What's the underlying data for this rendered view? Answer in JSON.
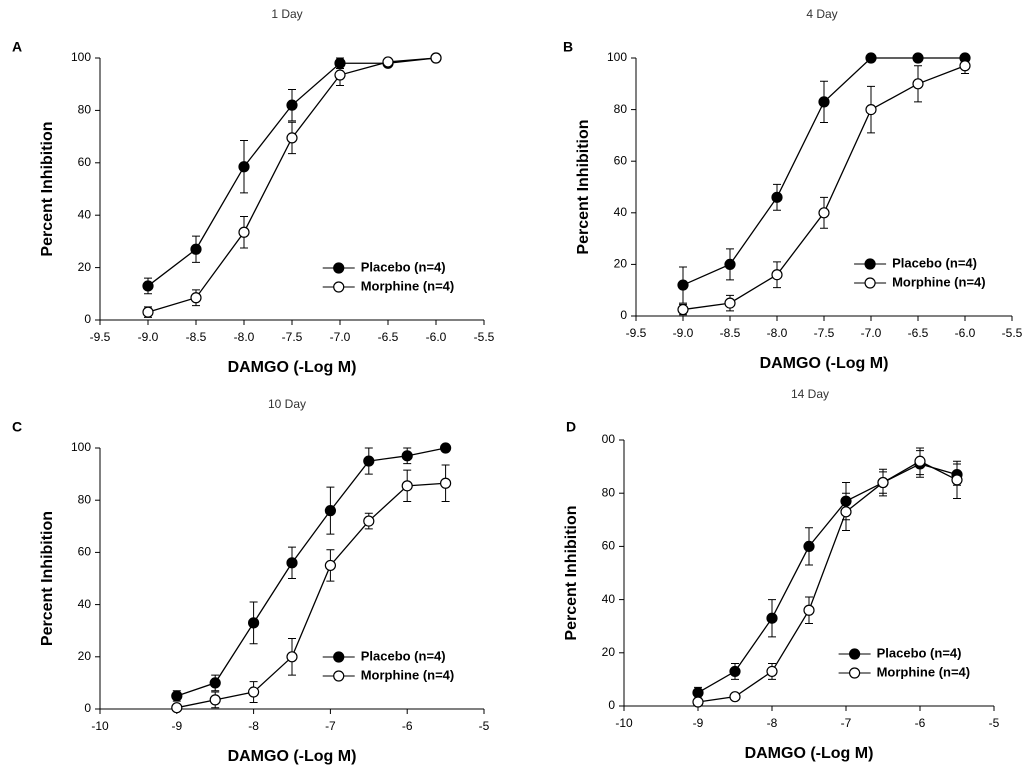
{
  "chart_data": [
    {
      "type": "line",
      "label": "A",
      "title": "1 Day",
      "xlabel": "DAMGO (-Log M)",
      "ylabel": "Percent Inhibition",
      "legend": "lower right",
      "x": [
        -9,
        -8.5,
        -8,
        -7.5,
        -7,
        -6.5,
        -6
      ],
      "xlim": [
        -9.5,
        -5.5
      ],
      "xticks": [
        -9.5,
        {
          "value": -9,
          "label": "-9.0"
        },
        -8.5,
        {
          "value": -8,
          "label": "-8.0"
        },
        -7.5,
        {
          "value": -7,
          "label": "-7.0"
        },
        -6.5,
        {
          "value": -6,
          "label": "-6.0"
        },
        -5.5
      ],
      "ylim": [
        0,
        100
      ],
      "yticks": [
        0,
        20,
        40,
        60,
        80,
        100
      ],
      "series": [
        {
          "name": "Placebo (n=4)",
          "color": "#000000",
          "values": [
            13,
            27,
            58.5,
            82,
            98,
            98,
            100
          ],
          "errors": [
            3,
            5,
            10,
            6,
            2,
            1,
            0
          ]
        },
        {
          "name": "Morphine (n=4)",
          "color": "#ffffff",
          "values": [
            3,
            8.5,
            33.5,
            69.5,
            93.5,
            98.5,
            100
          ],
          "errors": [
            2,
            3,
            6,
            6,
            4,
            1,
            0
          ]
        }
      ]
    },
    {
      "type": "line",
      "label": "B",
      "title": "4 Day",
      "xlabel": "DAMGO (-Log M)",
      "ylabel": "Percent Inhibition",
      "legend": "lower right",
      "x": [
        -9,
        -8.5,
        -8,
        -7.5,
        -7,
        -6.5,
        -6
      ],
      "xlim": [
        -9.5,
        -5.5
      ],
      "xticks": [
        -9.5,
        {
          "value": -9,
          "label": "-9.0"
        },
        -8.5,
        {
          "value": -8,
          "label": "-8.0"
        },
        -7.5,
        {
          "value": -7,
          "label": "-7.0"
        },
        -6.5,
        {
          "value": -6,
          "label": "-6.0"
        },
        -5.5
      ],
      "ylim": [
        0,
        100
      ],
      "yticks": [
        0,
        20,
        40,
        60,
        80,
        100
      ],
      "series": [
        {
          "name": "Placebo (n=4)",
          "color": "#000000",
          "values": [
            12,
            20,
            46,
            83,
            100,
            100,
            100
          ],
          "errors": [
            7,
            6,
            5,
            8,
            0,
            0,
            0
          ]
        },
        {
          "name": "Morphine (n=4)",
          "color": "#ffffff",
          "values": [
            2.5,
            5,
            16,
            40,
            80,
            90,
            97
          ],
          "errors": [
            2,
            3,
            5,
            6,
            9,
            7,
            3
          ]
        }
      ]
    },
    {
      "type": "line",
      "label": "C",
      "title": "10 Day",
      "xlabel": "DAMGO (-Log M)",
      "ylabel": "Percent Inhibition",
      "legend": "lower right",
      "x": [
        -9,
        -8.5,
        -8,
        -7.5,
        -7,
        -6.5,
        -6,
        -5.5
      ],
      "xlim": [
        -10,
        -5
      ],
      "xticks": [
        -10,
        -9,
        -8,
        -7,
        -6,
        -5
      ],
      "ylim": [
        0,
        100
      ],
      "yticks": [
        0,
        20,
        40,
        60,
        80,
        100
      ],
      "series": [
        {
          "name": "Placebo (n=4)",
          "color": "#000000",
          "values": [
            5,
            10,
            33,
            56,
            76,
            95,
            97,
            100
          ],
          "errors": [
            2,
            3,
            8,
            6,
            9,
            5,
            3,
            0
          ]
        },
        {
          "name": "Morphine (n=4)",
          "color": "#ffffff",
          "values": [
            0.5,
            3.5,
            6.5,
            20,
            55,
            72,
            85.5,
            86.5
          ],
          "errors": [
            0.5,
            3,
            4,
            7,
            6,
            3,
            6,
            7
          ]
        }
      ]
    },
    {
      "type": "line",
      "label": "D",
      "title": "14 Day",
      "xlabel": "DAMGO (-Log M)",
      "ylabel": "Percent Inhibition",
      "legend": "lower right",
      "x": [
        -9,
        -8.5,
        -8,
        -7.5,
        -7,
        -6.5,
        -6,
        -5.5
      ],
      "xlim": [
        -10,
        -5
      ],
      "xticks": [
        -10,
        -9,
        -8,
        -7,
        -6,
        -5
      ],
      "ylim": [
        0,
        100
      ],
      "yticks": [
        0,
        20,
        40,
        60,
        80,
        {
          "value": 100,
          "label": "00"
        }
      ],
      "series": [
        {
          "name": "Placebo (n=4)",
          "color": "#000000",
          "values": [
            5,
            13,
            33,
            60,
            77,
            84,
            91,
            87
          ],
          "errors": [
            2,
            3,
            7,
            7,
            7,
            4,
            5,
            4
          ]
        },
        {
          "name": "Morphine (n=4)",
          "color": "#ffffff",
          "values": [
            1.5,
            3.5,
            13,
            36,
            73,
            84,
            92,
            85
          ],
          "errors": [
            1,
            1,
            3,
            5,
            7,
            5,
            5,
            7
          ]
        }
      ]
    }
  ]
}
